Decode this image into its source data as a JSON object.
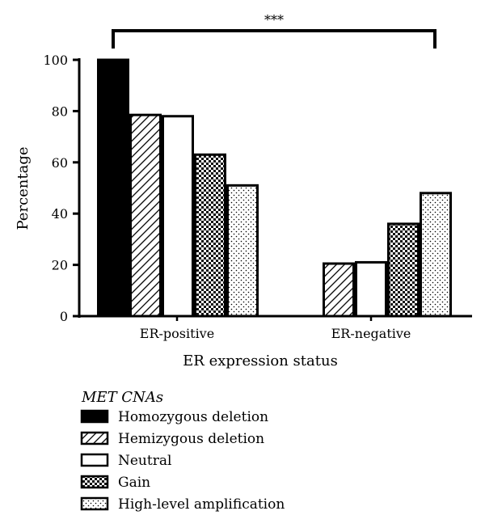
{
  "chart_data": {
    "type": "bar",
    "title": "",
    "xlabel": "ER expression status",
    "ylabel": "Percentage",
    "ylim": [
      0,
      100
    ],
    "yticks": [
      0,
      20,
      40,
      60,
      80,
      100
    ],
    "categories": [
      "ER-positive",
      "ER-negative"
    ],
    "series": [
      {
        "name": "Homozygous deletion",
        "values": [
          100,
          null
        ],
        "fill": "solid"
      },
      {
        "name": "Hemizygous deletion",
        "values": [
          78.5,
          20.5
        ],
        "fill": "hatch"
      },
      {
        "name": "Neutral",
        "values": [
          78,
          21
        ],
        "fill": "empty"
      },
      {
        "name": "Gain",
        "values": [
          63,
          36
        ],
        "fill": "checker"
      },
      {
        "name": "High-level amplification",
        "values": [
          51,
          48
        ],
        "fill": "dots"
      }
    ],
    "legend": {
      "title": "MET CNAs",
      "placement": "bottom-left"
    },
    "significance": {
      "label": "***"
    },
    "grid": false,
    "colors": {
      "ink": "#000000",
      "background": "#ffffff"
    }
  }
}
